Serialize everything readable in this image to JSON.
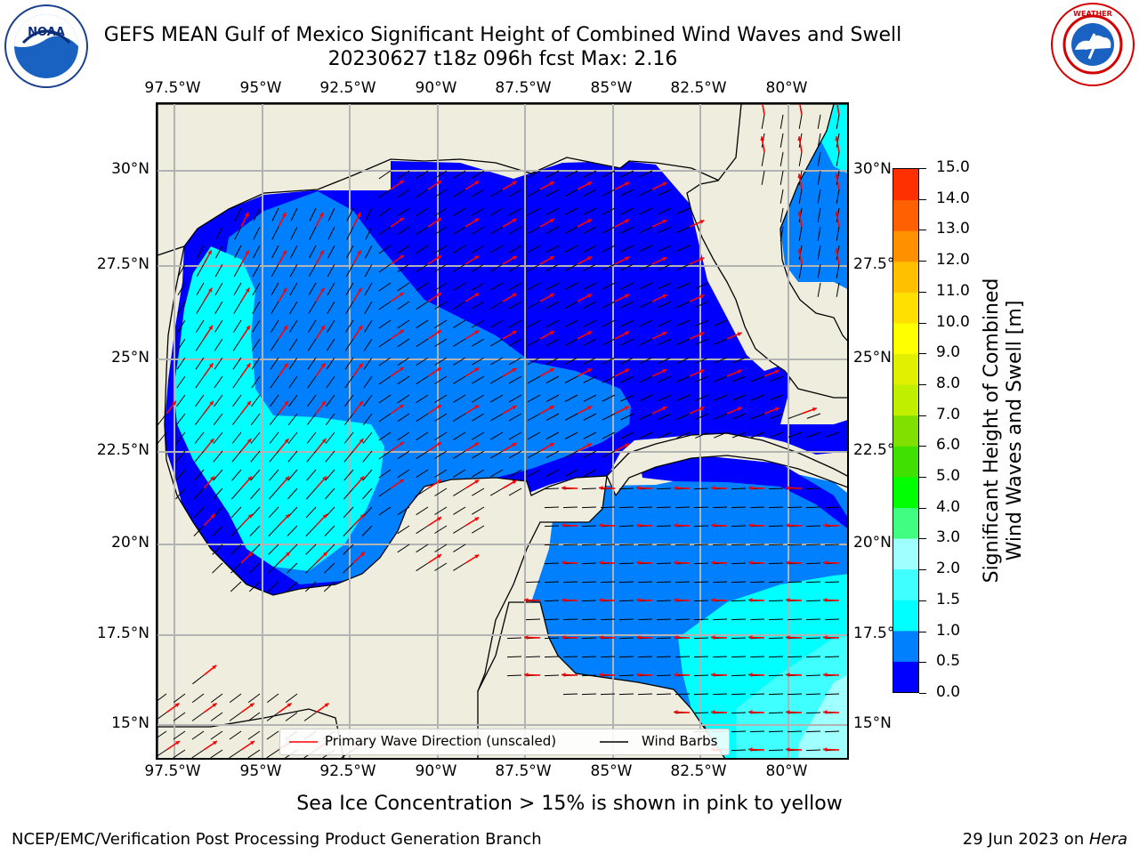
{
  "title": {
    "line1": "GEFS MEAN Gulf of Mexico Significant Height of Combined Wind Waves and Swell",
    "line2": "20230627 t18z 096h fcst   Max: 2.16"
  },
  "logos": {
    "left": "NOAA",
    "right": "NATIONAL WEATHER SERVICE"
  },
  "map": {
    "lon_ticks": [
      "97.5°W",
      "95°W",
      "92.5°W",
      "90°W",
      "87.5°W",
      "85°W",
      "82.5°W",
      "80°W"
    ],
    "lon_values": [
      -97.5,
      -95,
      -92.5,
      -90,
      -87.5,
      -85,
      -82.5,
      -80
    ],
    "lat_ticks_left": [
      "30°N",
      "27.5°N",
      "25°N",
      "22.5°N",
      "20°N",
      "17.5°N",
      "15°N"
    ],
    "lat_ticks_right": [
      "30°N",
      "27.5°N",
      "25°N",
      "22.5°N",
      "20°N",
      "17.5°N",
      "15°N"
    ],
    "lat_values": [
      30,
      27.5,
      25,
      22.5,
      20,
      17.5,
      15
    ],
    "extent": {
      "lon_min": -98,
      "lon_max": -78.2,
      "lat_min": 14,
      "lat_max": 31.6
    },
    "colors": {
      "land": "#efedde",
      "grid": "#b3b3b3",
      "arrow": "#ff0000",
      "barb": "#000000"
    }
  },
  "colorbar": {
    "label_line1": "Significant Height of Combined",
    "label_line2": "Wind Waves and Swell [m]",
    "tick_labels": [
      "0.0",
      "0.5",
      "1.0",
      "1.5",
      "2.0",
      "3.0",
      "4.0",
      "5.0",
      "6.0",
      "7.0",
      "8.0",
      "9.0",
      "10.0",
      "11.0",
      "12.0",
      "13.0",
      "14.0",
      "15.0"
    ],
    "colors": [
      "#0000ff",
      "#0080ff",
      "#00ffff",
      "#40ffff",
      "#a0ffff",
      "#40ff80",
      "#00ff00",
      "#40e000",
      "#80e000",
      "#c0f000",
      "#e0f000",
      "#ffff00",
      "#ffe000",
      "#ffc000",
      "#ff9000",
      "#ff6000",
      "#ff3000"
    ]
  },
  "legend": {
    "wave_label": "Primary Wave Direction (unscaled)",
    "barb_label": "Wind Barbs"
  },
  "note": "Sea Ice Concentration > 15% is shown in pink to yellow",
  "footer": {
    "left": "NCEP/EMC/Verification Post Processing Product Generation Branch",
    "right_prefix": "29 Jun 2023 on ",
    "right_host": "Hera"
  }
}
